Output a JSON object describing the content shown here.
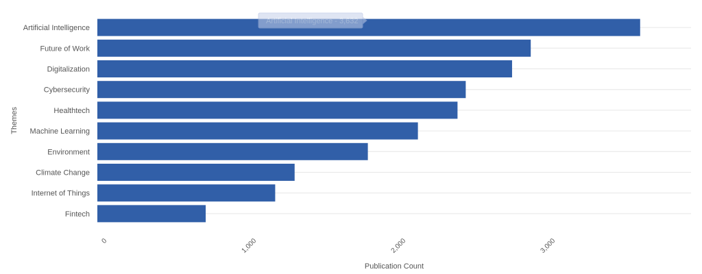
{
  "chart_data": {
    "type": "bar",
    "orientation": "horizontal",
    "categories": [
      "Artificial Intelligence",
      "Future of Work",
      "Digitalization",
      "Cybersecurity",
      "Healthtech",
      "Machine Learning",
      "Environment",
      "Climate Change",
      "Internet of Things",
      "Fintech"
    ],
    "values": [
      3632,
      2900,
      2775,
      2465,
      2410,
      2145,
      1810,
      1320,
      1190,
      725
    ],
    "xlabel": "Publication Count",
    "ylabel": "Themes",
    "xlim": [
      0,
      4000
    ],
    "xticks": [
      0,
      1000,
      2000,
      3000
    ],
    "xtick_labels": [
      "0",
      "1,000",
      "2,000",
      "3,000"
    ],
    "bar_color": "#315fa8",
    "grid": true,
    "legend": "none",
    "tooltip": {
      "text": "Artificial Intelligence - 3,632"
    }
  }
}
